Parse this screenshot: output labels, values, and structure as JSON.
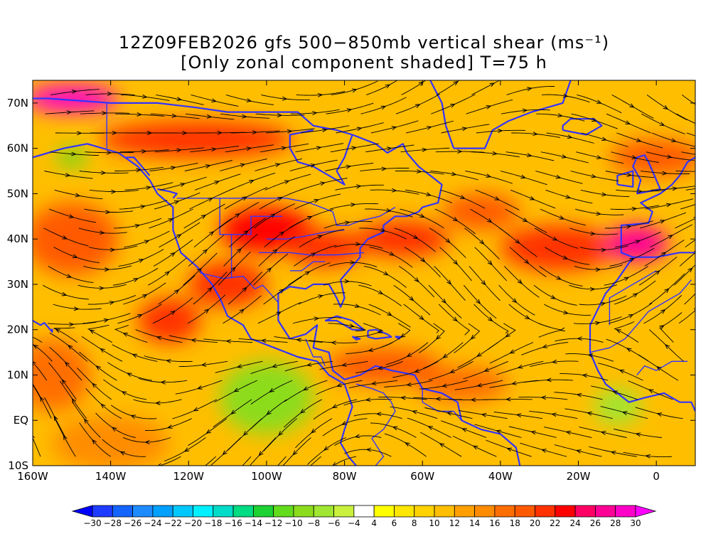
{
  "title": {
    "line1": "12Z09FEB2026 gfs 500−850mb vertical shear (ms⁻¹)",
    "line2": "[Only zonal component shaded] T=75 h"
  },
  "map": {
    "projection": "cylindrical equidistant",
    "lon_range": [
      -160,
      10
    ],
    "lat_range": [
      -10,
      75
    ],
    "lat_ticks": [
      {
        "value": 70,
        "label": "70N"
      },
      {
        "value": 60,
        "label": "60N"
      },
      {
        "value": 50,
        "label": "50N"
      },
      {
        "value": 40,
        "label": "40N"
      },
      {
        "value": 30,
        "label": "30N"
      },
      {
        "value": 20,
        "label": "20N"
      },
      {
        "value": 10,
        "label": "10N"
      },
      {
        "value": 0,
        "label": "EQ"
      },
      {
        "value": -10,
        "label": "10S"
      }
    ],
    "lon_ticks": [
      {
        "value": -160,
        "label": "160W"
      },
      {
        "value": -140,
        "label": "140W"
      },
      {
        "value": -120,
        "label": "120W"
      },
      {
        "value": -100,
        "label": "100W"
      },
      {
        "value": -80,
        "label": "80W"
      },
      {
        "value": -60,
        "label": "60W"
      },
      {
        "value": -40,
        "label": "40W"
      },
      {
        "value": -20,
        "label": "20W"
      },
      {
        "value": 0,
        "label": "0"
      }
    ],
    "shading_blobs": [
      {
        "lon": -150,
        "lat": 71,
        "rlon": 12,
        "rlat": 3,
        "v": 28
      },
      {
        "lon": -118,
        "lat": 62,
        "rlon": 25,
        "rlat": 4,
        "v": 20
      },
      {
        "lon": -150,
        "lat": 40,
        "rlon": 12,
        "rlat": 8,
        "v": 18
      },
      {
        "lon": -125,
        "lat": 22,
        "rlon": 8,
        "rlat": 5,
        "v": 20
      },
      {
        "lon": -110,
        "lat": 30,
        "rlon": 10,
        "rlat": 5,
        "v": 20
      },
      {
        "lon": -100,
        "lat": 42,
        "rlon": 12,
        "rlat": 5,
        "v": 22
      },
      {
        "lon": -85,
        "lat": 38,
        "rlon": 10,
        "rlat": 4,
        "v": 20
      },
      {
        "lon": -65,
        "lat": 40,
        "rlon": 12,
        "rlat": 4,
        "v": 20
      },
      {
        "lon": -45,
        "lat": 46,
        "rlon": 10,
        "rlat": 4,
        "v": 18
      },
      {
        "lon": -25,
        "lat": 38,
        "rlon": 15,
        "rlat": 5,
        "v": 20
      },
      {
        "lon": -5,
        "lat": 39,
        "rlon": 8,
        "rlat": 4,
        "v": 26
      },
      {
        "lon": 0,
        "lat": 58,
        "rlon": 12,
        "rlat": 4,
        "v": 18
      },
      {
        "lon": -155,
        "lat": 10,
        "rlon": 10,
        "rlat": 8,
        "v": 16
      },
      {
        "lon": -140,
        "lat": -5,
        "rlon": 15,
        "rlat": 6,
        "v": 14
      },
      {
        "lon": -70,
        "lat": 12,
        "rlon": 15,
        "rlat": 4,
        "v": 18
      },
      {
        "lon": -50,
        "lat": 8,
        "rlon": 12,
        "rlat": 4,
        "v": 16
      },
      {
        "lon": -100,
        "lat": 5,
        "rlon": 12,
        "rlat": 8,
        "v": -10
      },
      {
        "lon": -150,
        "lat": 58,
        "rlon": 4,
        "rlat": 2,
        "v": -12
      },
      {
        "lon": -10,
        "lat": 3,
        "rlon": 6,
        "rlat": 4,
        "v": -8
      }
    ],
    "colors": {
      "coastline": "#3333ff",
      "streamline": "#000000",
      "frame": "#000000"
    }
  },
  "colorbar": {
    "levels": [
      -30,
      -28,
      -26,
      -24,
      -22,
      -20,
      -18,
      -16,
      -14,
      -12,
      -10,
      -8,
      -6,
      -4,
      4,
      6,
      8,
      10,
      12,
      14,
      16,
      18,
      20,
      22,
      24,
      26,
      28,
      30
    ],
    "labels": [
      "−30",
      "−28",
      "−26",
      "−24",
      "−22",
      "−20",
      "−18",
      "−16",
      "−14",
      "−12",
      "−10",
      "−8",
      "−6",
      "−4",
      "4",
      "6",
      "8",
      "10",
      "12",
      "14",
      "16",
      "18",
      "20",
      "22",
      "24",
      "26",
      "28",
      "30"
    ],
    "colors": [
      "#0000ff",
      "#1e3cff",
      "#1464ff",
      "#1e8cff",
      "#00a0ff",
      "#00c8ff",
      "#00f0ff",
      "#00dcc8",
      "#00dc82",
      "#1ed232",
      "#64dc1e",
      "#8cdc1e",
      "#a0e632",
      "#c8f03c",
      "#ffffff",
      "#ffff00",
      "#ffe600",
      "#ffd200",
      "#ffbe00",
      "#ffa000",
      "#ff8c00",
      "#ff6e00",
      "#ff5a00",
      "#ff3200",
      "#ff0000",
      "#ff0064",
      "#ff0096",
      "#ff00c8",
      "#ff00ff"
    ]
  }
}
